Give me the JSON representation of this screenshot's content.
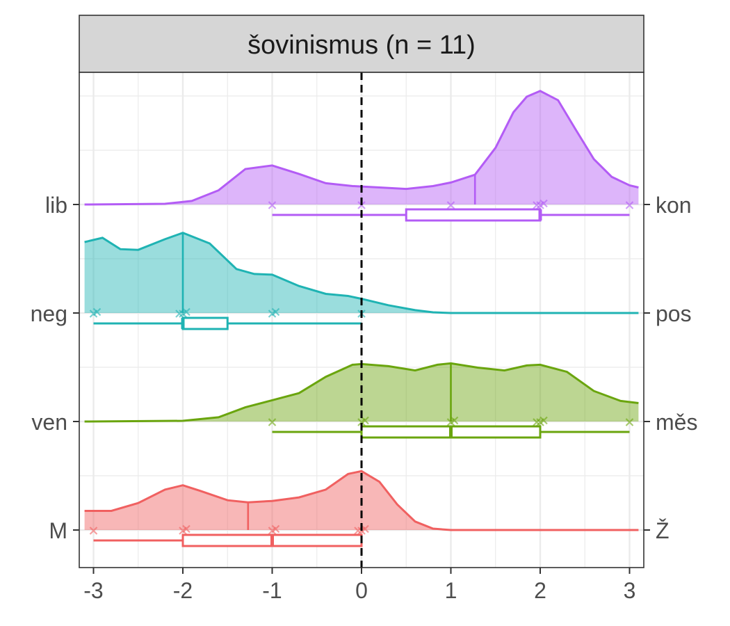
{
  "chart_data": {
    "type": "raincloud",
    "title": "šovinismus (n = 11)",
    "x_ticks": [
      -3,
      -2,
      -1,
      0,
      1,
      2,
      3
    ],
    "xlim": [
      -3.13,
      3.13
    ],
    "reference_line_x": 0,
    "rows": [
      {
        "left_label": "M",
        "right_label": "Ž",
        "color": "#f06060",
        "points": [
          -3,
          -2,
          -2,
          -1,
          -1,
          0,
          0,
          0
        ],
        "box": {
          "whisker_min": -3,
          "q1": -2,
          "median": -1,
          "q3": 0,
          "whisker_max": 0
        },
        "density_ref_line": -1.27,
        "density": [
          [
            -3.1,
            0.27
          ],
          [
            -2.8,
            0.27
          ],
          [
            -2.5,
            0.38
          ],
          [
            -2.2,
            0.57
          ],
          [
            -2.0,
            0.63
          ],
          [
            -1.8,
            0.55
          ],
          [
            -1.5,
            0.42
          ],
          [
            -1.27,
            0.39
          ],
          [
            -1.0,
            0.41
          ],
          [
            -0.7,
            0.46
          ],
          [
            -0.4,
            0.57
          ],
          [
            -0.15,
            0.79
          ],
          [
            0.0,
            0.83
          ],
          [
            0.2,
            0.68
          ],
          [
            0.4,
            0.36
          ],
          [
            0.6,
            0.12
          ],
          [
            0.8,
            0.02
          ],
          [
            1.0,
            0.0
          ],
          [
            3.1,
            0.0
          ]
        ]
      },
      {
        "left_label": "ven",
        "right_label": "měs",
        "color": "#6aa50e",
        "points": [
          -1,
          0,
          0,
          1,
          1,
          2,
          2,
          2,
          3
        ],
        "box": {
          "whisker_min": -1,
          "q1": 0,
          "median": 1,
          "q3": 2,
          "whisker_max": 3
        },
        "density_ref_line": 1.0,
        "density": [
          [
            -3.1,
            0.0
          ],
          [
            -2.0,
            0.01
          ],
          [
            -1.6,
            0.06
          ],
          [
            -1.3,
            0.2
          ],
          [
            -1.0,
            0.3
          ],
          [
            -0.7,
            0.4
          ],
          [
            -0.4,
            0.63
          ],
          [
            -0.1,
            0.8
          ],
          [
            0.0,
            0.81
          ],
          [
            0.3,
            0.78
          ],
          [
            0.6,
            0.72
          ],
          [
            0.85,
            0.8
          ],
          [
            1.0,
            0.82
          ],
          [
            1.3,
            0.76
          ],
          [
            1.6,
            0.72
          ],
          [
            1.85,
            0.79
          ],
          [
            2.0,
            0.8
          ],
          [
            2.3,
            0.7
          ],
          [
            2.6,
            0.43
          ],
          [
            2.9,
            0.29
          ],
          [
            3.1,
            0.26
          ]
        ]
      },
      {
        "left_label": "neg",
        "right_label": "pos",
        "color": "#1fb3b3",
        "points": [
          -3,
          -3,
          -2,
          -2,
          -2,
          -1,
          -1,
          0
        ],
        "box": {
          "whisker_min": -3,
          "q1": -2,
          "median": -2,
          "q3": -1.5,
          "whisker_max": 0
        },
        "density_ref_line": -2.0,
        "density": [
          [
            -3.1,
            1.0
          ],
          [
            -2.9,
            1.06
          ],
          [
            -2.7,
            0.9
          ],
          [
            -2.5,
            0.89
          ],
          [
            -2.2,
            1.04
          ],
          [
            -2.0,
            1.13
          ],
          [
            -1.7,
            0.98
          ],
          [
            -1.4,
            0.62
          ],
          [
            -1.2,
            0.55
          ],
          [
            -1.0,
            0.54
          ],
          [
            -0.7,
            0.38
          ],
          [
            -0.4,
            0.27
          ],
          [
            -0.15,
            0.24
          ],
          [
            0.0,
            0.2
          ],
          [
            0.3,
            0.11
          ],
          [
            0.6,
            0.04
          ],
          [
            0.8,
            0.01
          ],
          [
            1.0,
            0.0
          ],
          [
            3.1,
            0.0
          ]
        ]
      },
      {
        "left_label": "lib",
        "right_label": "kon",
        "color": "#b35cf5",
        "points": [
          -1,
          0,
          1,
          2,
          2,
          2,
          3
        ],
        "box": {
          "whisker_min": -1,
          "q1": 0.5,
          "median": 2,
          "q3": 2,
          "whisker_max": 3
        },
        "density_ref_line": 1.27,
        "density": [
          [
            -3.1,
            0.0
          ],
          [
            -2.2,
            0.01
          ],
          [
            -1.9,
            0.05
          ],
          [
            -1.6,
            0.2
          ],
          [
            -1.3,
            0.5
          ],
          [
            -1.0,
            0.55
          ],
          [
            -0.7,
            0.43
          ],
          [
            -0.4,
            0.3
          ],
          [
            -0.1,
            0.26
          ],
          [
            0.2,
            0.24
          ],
          [
            0.5,
            0.22
          ],
          [
            0.8,
            0.26
          ],
          [
            1.0,
            0.31
          ],
          [
            1.27,
            0.42
          ],
          [
            1.5,
            0.8
          ],
          [
            1.7,
            1.3
          ],
          [
            1.85,
            1.52
          ],
          [
            2.0,
            1.6
          ],
          [
            2.2,
            1.47
          ],
          [
            2.4,
            1.05
          ],
          [
            2.6,
            0.64
          ],
          [
            2.8,
            0.39
          ],
          [
            3.0,
            0.27
          ],
          [
            3.1,
            0.24
          ]
        ]
      }
    ]
  }
}
